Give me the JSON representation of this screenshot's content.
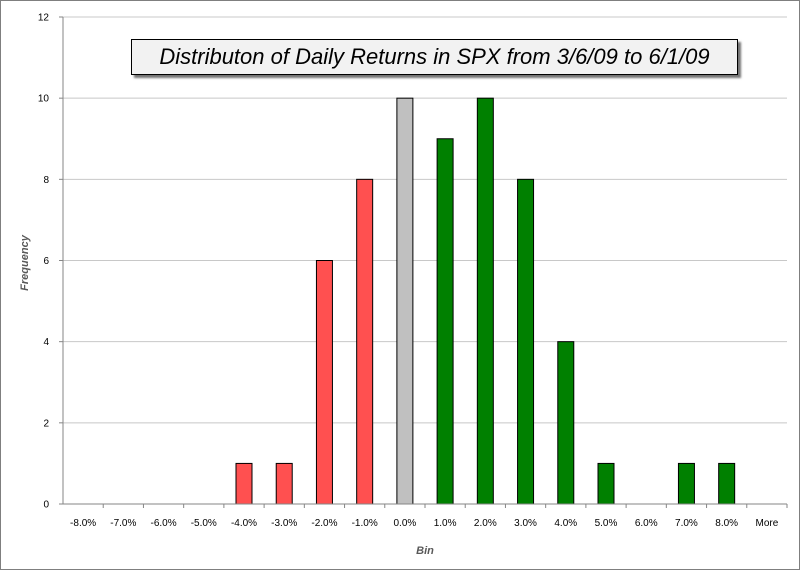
{
  "chart_data": {
    "type": "bar",
    "title": "Distributon of Daily Returns in SPX from 3/6/09 to 6/1/09",
    "xlabel": "Bin",
    "ylabel": "Frequency",
    "categories": [
      "-8.0%",
      "-7.0%",
      "-6.0%",
      "-5.0%",
      "-4.0%",
      "-3.0%",
      "-2.0%",
      "-1.0%",
      "0.0%",
      "1.0%",
      "2.0%",
      "3.0%",
      "4.0%",
      "5.0%",
      "6.0%",
      "7.0%",
      "8.0%",
      "More"
    ],
    "values": [
      0,
      0,
      0,
      0,
      1,
      1,
      6,
      8,
      10,
      9,
      10,
      8,
      4,
      1,
      0,
      1,
      1,
      0
    ],
    "ylim": [
      0,
      12
    ],
    "yticks": [
      "0",
      "2",
      "4",
      "6",
      "8",
      "10",
      "12"
    ],
    "grid": true,
    "legend": "none",
    "colors": {
      "negative": "#ff5050",
      "zero": "#c0c0c0",
      "positive": "#008000",
      "outline": "#000000",
      "gridline": "#c8c8c8"
    }
  }
}
